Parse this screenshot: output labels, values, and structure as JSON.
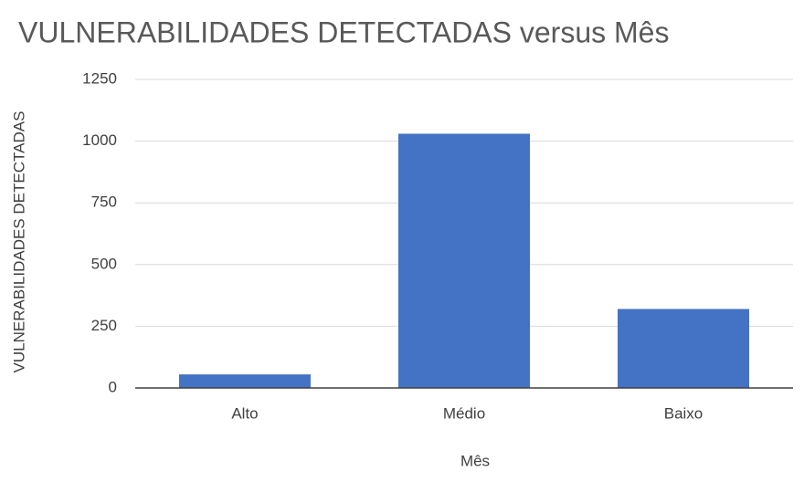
{
  "chart_data": {
    "type": "bar",
    "title": "VULNERABILIDADES DETECTADAS versus Mês",
    "x_label": "Mês",
    "y_label": "VULNERABILIDADES DETECTADAS",
    "categories": [
      "Alto",
      "Médio",
      "Baixo"
    ],
    "values": [
      55,
      1030,
      320
    ],
    "color": "#4472c4",
    "ylim": [
      0,
      1250
    ],
    "yticks": [
      0,
      250,
      500,
      750,
      1000,
      1250
    ],
    "grid": true
  }
}
